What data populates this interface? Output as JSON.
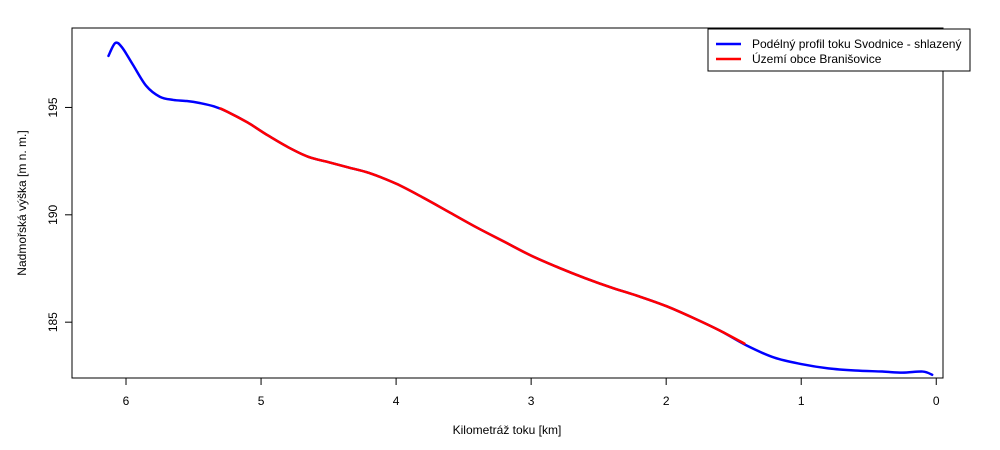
{
  "chart_data": {
    "type": "line",
    "title": "",
    "xlabel": "Kilometráž toku [km]",
    "ylabel": "Nadmořská výška [m n. m.]",
    "xlim": [
      6.4,
      -0.05
    ],
    "ylim": [
      182.4,
      198.7
    ],
    "x_reversed": true,
    "x_ticks": [
      6,
      5,
      4,
      3,
      2,
      1,
      0
    ],
    "y_ticks": [
      185,
      190,
      195
    ],
    "legend_position": "top-right",
    "series": [
      {
        "name": "Podélný profil toku Svodnice - shlazený",
        "color": "#0000ff",
        "x": [
          6.13,
          6.08,
          6.03,
          5.95,
          5.85,
          5.75,
          5.65,
          5.55,
          5.45,
          5.35,
          5.25,
          5.1,
          4.95,
          4.8,
          4.65,
          4.5,
          4.35,
          4.2,
          4.0,
          3.8,
          3.6,
          3.4,
          3.2,
          3.0,
          2.8,
          2.6,
          2.4,
          2.2,
          2.0,
          1.8,
          1.6,
          1.4,
          1.2,
          1.0,
          0.8,
          0.6,
          0.4,
          0.25,
          0.1,
          0.03
        ],
        "y": [
          197.4,
          198.0,
          197.8,
          197.0,
          196.0,
          195.5,
          195.35,
          195.3,
          195.2,
          195.05,
          194.8,
          194.3,
          193.7,
          193.15,
          192.7,
          192.45,
          192.2,
          191.95,
          191.45,
          190.8,
          190.1,
          189.4,
          188.75,
          188.1,
          187.55,
          187.05,
          186.6,
          186.2,
          185.75,
          185.2,
          184.6,
          183.9,
          183.35,
          183.05,
          182.85,
          182.75,
          182.7,
          182.65,
          182.7,
          182.55
        ]
      },
      {
        "name": "Území obce Branišovice",
        "color": "#ff0000",
        "x": [
          5.3,
          5.25,
          5.1,
          4.95,
          4.8,
          4.65,
          4.5,
          4.35,
          4.2,
          4.0,
          3.8,
          3.6,
          3.4,
          3.2,
          3.0,
          2.8,
          2.6,
          2.4,
          2.2,
          2.0,
          1.8,
          1.6,
          1.42
        ],
        "y": [
          194.95,
          194.8,
          194.3,
          193.7,
          193.15,
          192.7,
          192.45,
          192.2,
          191.95,
          191.45,
          190.8,
          190.1,
          189.4,
          188.75,
          188.1,
          187.55,
          187.05,
          186.6,
          186.2,
          185.75,
          185.2,
          184.6,
          184.0
        ]
      }
    ]
  }
}
